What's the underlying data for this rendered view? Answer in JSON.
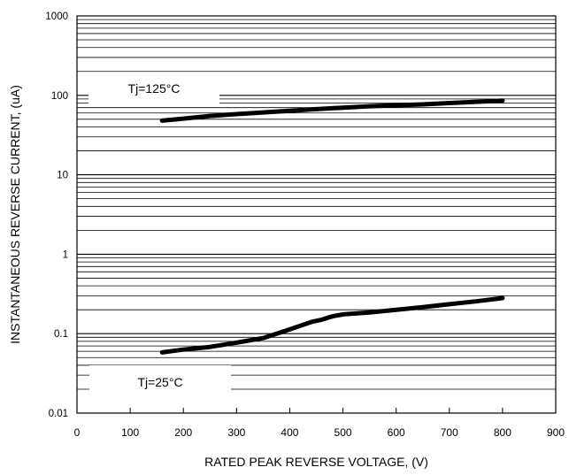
{
  "chart_data": {
    "type": "line",
    "title": "",
    "xlabel": "RATED PEAK REVERSE VOLTAGE, (V)",
    "ylabel": "INSTANTANEOUS REVERSE CURRENT, (uA)",
    "x_scale": "linear",
    "y_scale": "log",
    "xlim": [
      0,
      900
    ],
    "ylim": [
      0.01,
      1000
    ],
    "x_ticks": [
      0,
      100,
      200,
      300,
      400,
      500,
      600,
      700,
      800,
      900
    ],
    "x_tick_labels": [
      "0",
      "100",
      "200",
      "300",
      "400",
      "500",
      "600",
      "700",
      "800",
      "900"
    ],
    "y_ticks": [
      0.01,
      0.1,
      1,
      10,
      100,
      1000
    ],
    "y_tick_labels": [
      "0.01",
      "0.1",
      "1",
      "10",
      "100",
      "1000"
    ],
    "grid": "horizontal, log minor lines",
    "series": [
      {
        "name": "Tj=125°C",
        "color": "#000000",
        "x": [
          160,
          200,
          250,
          300,
          350,
          400,
          450,
          500,
          550,
          600,
          650,
          700,
          750,
          800
        ],
        "y": [
          48,
          51,
          55,
          58,
          61,
          64,
          67,
          70,
          73,
          75,
          77,
          80,
          83,
          86
        ]
      },
      {
        "name": "Tj=25°C",
        "color": "#000000",
        "x": [
          160,
          200,
          250,
          300,
          350,
          400,
          440,
          460,
          480,
          500,
          550,
          600,
          650,
          700,
          750,
          800
        ],
        "y": [
          0.058,
          0.063,
          0.068,
          0.077,
          0.088,
          0.113,
          0.14,
          0.15,
          0.165,
          0.175,
          0.185,
          0.2,
          0.215,
          0.235,
          0.255,
          0.28
        ]
      }
    ],
    "annotations": [
      "Tj=125°C",
      "Tj=25°C"
    ]
  }
}
